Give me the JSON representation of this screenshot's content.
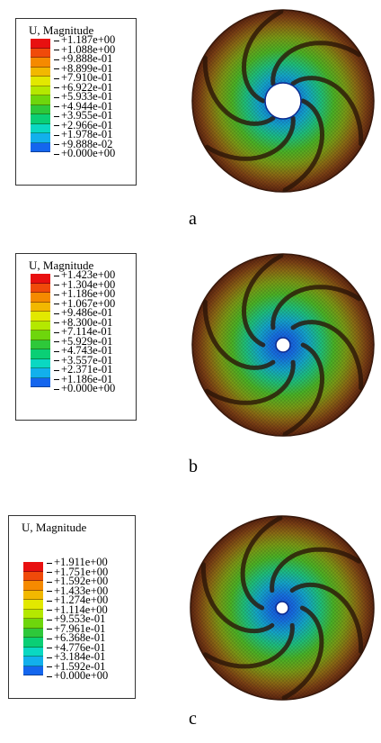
{
  "colors": [
    "#e81010",
    "#f04a0a",
    "#f58a00",
    "#f2b800",
    "#e2e800",
    "#b4e800",
    "#6ed60c",
    "#2ec83a",
    "#0acf75",
    "#0ad8c2",
    "#12b0ec",
    "#1466ee",
    "#1018e8"
  ],
  "panels": [
    {
      "caption": "a",
      "legend_title": "U, Magnitude",
      "values": [
        "+1.187e+00",
        "+1.088e+00",
        "+9.888e-01",
        "+8.899e-01",
        "+7.910e-01",
        "+6.922e-01",
        "+5.933e-01",
        "+4.944e-01",
        "+3.955e-01",
        "+2.966e-01",
        "+1.978e-01",
        "+9.888e-02",
        "+0.000e+00"
      ],
      "hub_size": "large",
      "disk_icon": "impeller-displacement-contour-icon"
    },
    {
      "caption": "b",
      "legend_title": "U, Magnitude",
      "values": [
        "+1.423e+00",
        "+1.304e+00",
        "+1.186e+00",
        "+1.067e+00",
        "+9.486e-01",
        "+8.300e-01",
        "+7.114e-01",
        "+5.929e-01",
        "+4.743e-01",
        "+3.557e-01",
        "+2.371e-01",
        "+1.186e-01",
        "+0.000e+00"
      ],
      "hub_size": "small",
      "disk_icon": "impeller-displacement-contour-icon"
    },
    {
      "caption": "c",
      "legend_title": "U, Magnitude",
      "values": [
        "+1.911e+00",
        "+1.751e+00",
        "+1.592e+00",
        "+1.433e+00",
        "+1.274e+00",
        "+1.114e+00",
        "+9.553e-01",
        "+7.961e-01",
        "+6.368e-01",
        "+4.776e-01",
        "+3.184e-01",
        "+1.592e-01",
        "+0.000e+00"
      ],
      "hub_size": "small",
      "disk_icon": "impeller-displacement-contour-icon"
    }
  ]
}
